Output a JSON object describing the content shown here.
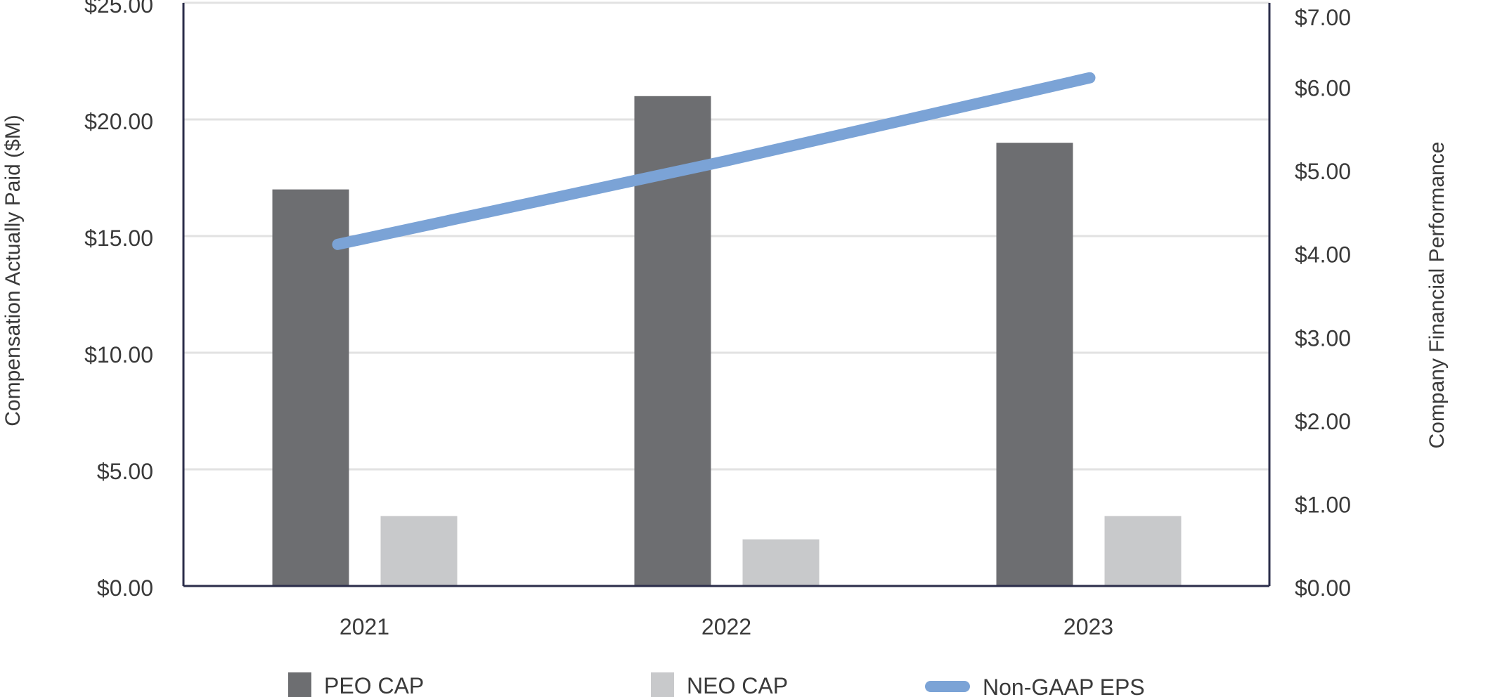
{
  "chart_data": {
    "type": "bar",
    "title": "",
    "categories": [
      "2021",
      "2022",
      "2023"
    ],
    "series": [
      {
        "name": "PEO CAP",
        "kind": "bar",
        "axis": "left",
        "color": "#6d6e71",
        "values": [
          17.0,
          21.0,
          19.0
        ]
      },
      {
        "name": "NEO CAP",
        "kind": "bar",
        "axis": "left",
        "color": "#c8c9cb",
        "values": [
          3.0,
          2.0,
          3.0
        ]
      },
      {
        "name": "Non-GAAP EPS",
        "kind": "line",
        "axis": "right",
        "color": "#7ba3d6",
        "values": [
          4.1,
          5.1,
          6.1
        ]
      }
    ],
    "ylabel": "Compensation Actually Paid ($M)",
    "y2label": "Company Financial Performance",
    "ylim": [
      0,
      25
    ],
    "y2lim": [
      0,
      7
    ],
    "yticks": [
      "$0.00",
      "$5.00",
      "$10.00",
      "$15.00",
      "$20.00",
      "$25.00"
    ],
    "yticks_values": [
      0,
      5,
      10,
      15,
      20,
      25
    ],
    "y2ticks": [
      "$0.00",
      "$1.00",
      "$2.00",
      "$3.00",
      "$4.00",
      "$5.00",
      "$6.00",
      "$7.00"
    ],
    "y2ticks_values": [
      0,
      1,
      2,
      3,
      4,
      5,
      6,
      7
    ],
    "grid": true,
    "legend_position": "bottom"
  }
}
